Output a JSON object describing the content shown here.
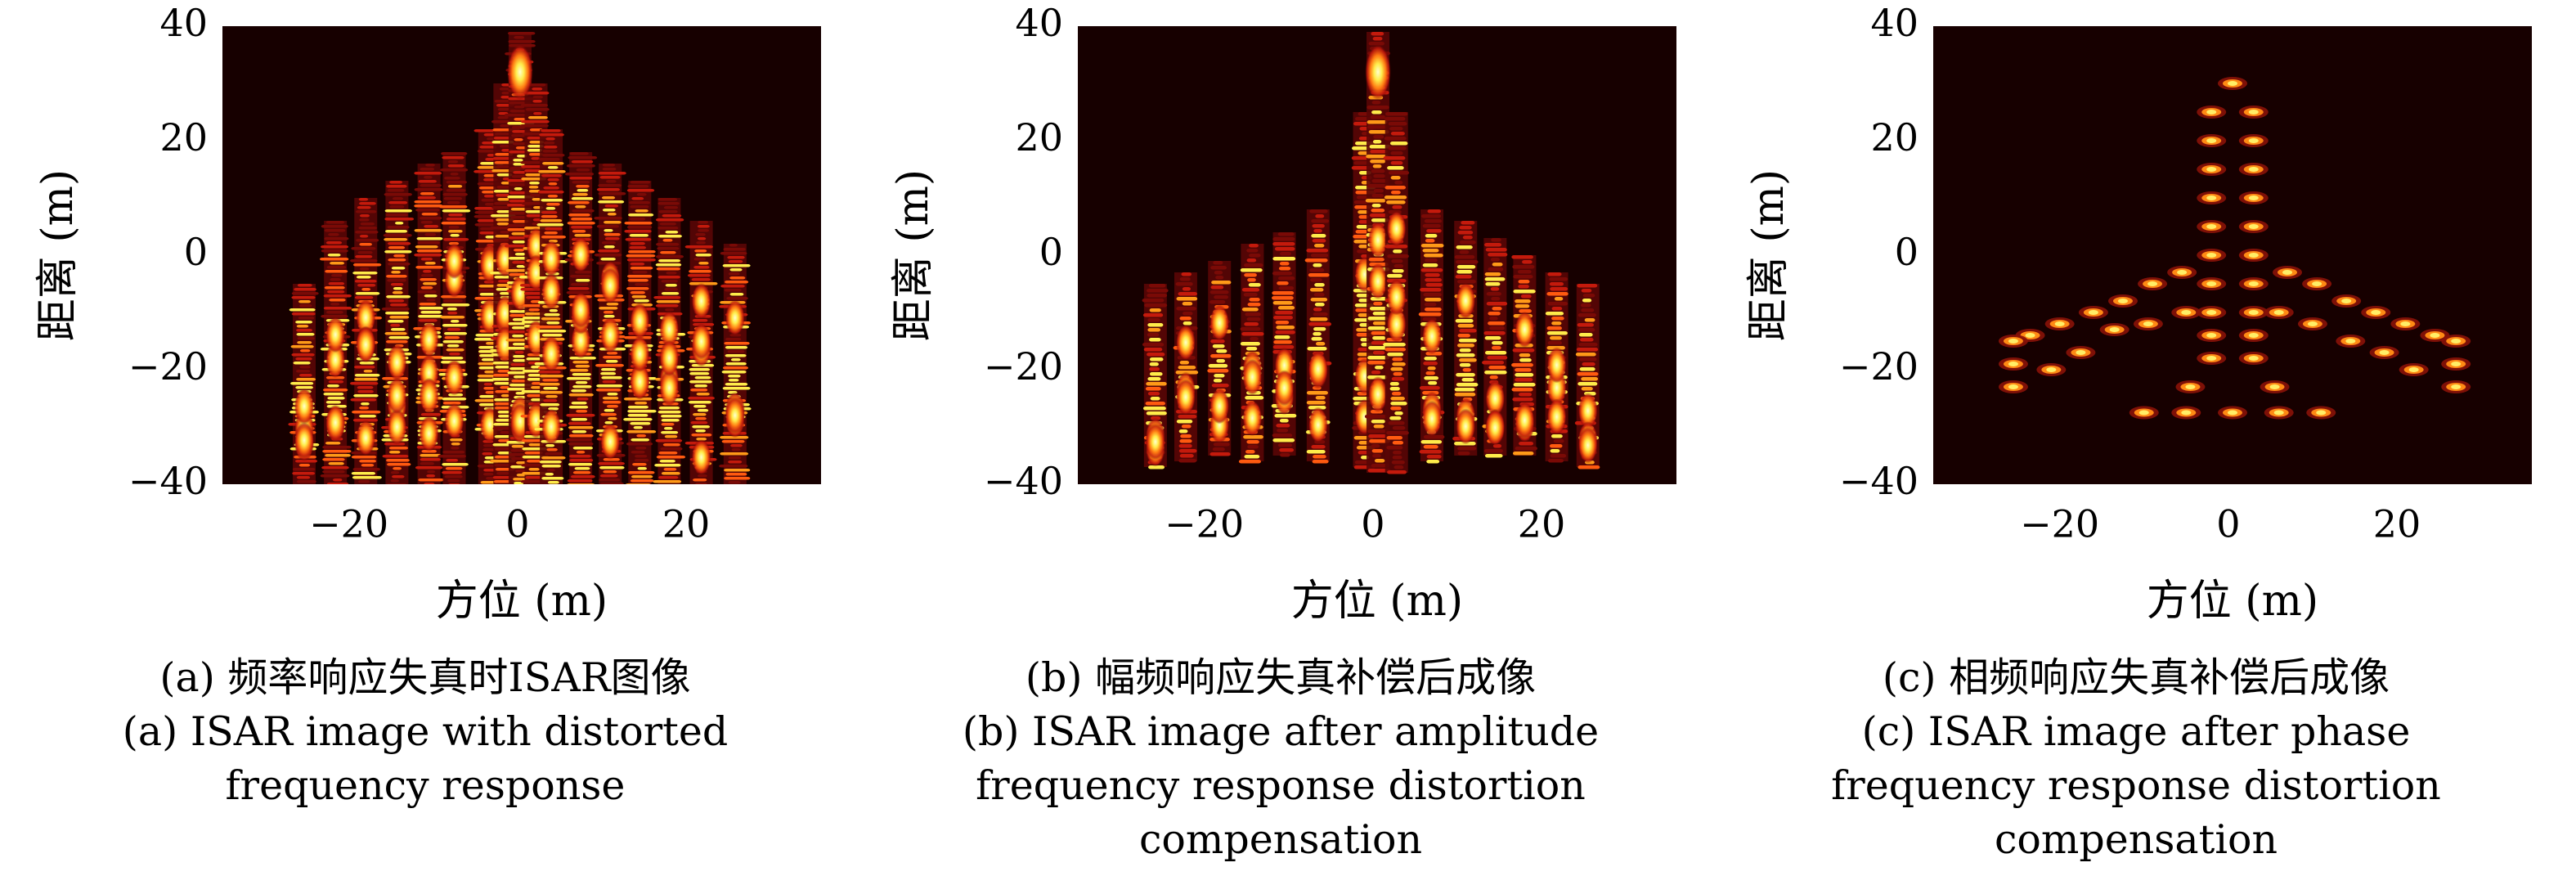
{
  "colors": {
    "background": "#170000",
    "dark_red": "#8a0a0a",
    "red": "#d21b0d",
    "orange": "#ff7a12",
    "yellow": "#ffec4a",
    "white_hot": "#ffffd0"
  },
  "chart_data": [
    {
      "type": "heatmap",
      "colormap": "hot",
      "xlabel": "方位 (m)",
      "ylabel": "距离 (m)",
      "xticks": [
        "−20",
        "0",
        "20"
      ],
      "yticks": [
        "40",
        "20",
        "0",
        "−20",
        "−40"
      ],
      "xlim": [
        -35,
        36
      ],
      "ylim": [
        -40,
        40
      ],
      "caption_cn": "(a) 频率响应失真时ISAR图像",
      "caption_en": [
        "(a) ISAR image with distorted",
        "frequency response"
      ],
      "appearance": "defocused",
      "scatterer_columns": [
        {
          "x": -25.3,
          "y_top": -5,
          "y_bottom": -40
        },
        {
          "x": -21.6,
          "y_top": 6,
          "y_bottom": -40
        },
        {
          "x": -18.0,
          "y_top": 10,
          "y_bottom": -40
        },
        {
          "x": -14.3,
          "y_top": 13,
          "y_bottom": -40
        },
        {
          "x": -10.5,
          "y_top": 16,
          "y_bottom": -40
        },
        {
          "x": -7.5,
          "y_top": 18,
          "y_bottom": -40
        },
        {
          "x": -3.3,
          "y_top": 22,
          "y_bottom": -40
        },
        {
          "x": -1.5,
          "y_top": 30,
          "y_bottom": -40
        },
        {
          "x": 0.3,
          "y_top": 39,
          "y_bottom": -40
        },
        {
          "x": 2.2,
          "y_top": 30,
          "y_bottom": -40
        },
        {
          "x": 4.0,
          "y_top": 22,
          "y_bottom": -40
        },
        {
          "x": 7.5,
          "y_top": 18,
          "y_bottom": -40
        },
        {
          "x": 11.0,
          "y_top": 16,
          "y_bottom": -40
        },
        {
          "x": 14.5,
          "y_top": 13,
          "y_bottom": -40
        },
        {
          "x": 18.0,
          "y_top": 10,
          "y_bottom": -40
        },
        {
          "x": 21.8,
          "y_top": 6,
          "y_bottom": -40
        },
        {
          "x": 25.8,
          "y_top": 2,
          "y_bottom": -40
        }
      ]
    },
    {
      "type": "heatmap",
      "colormap": "hot",
      "xlabel": "方位 (m)",
      "ylabel": "距离 (m)",
      "xticks": [
        "−20",
        "0",
        "20"
      ],
      "yticks": [
        "40",
        "20",
        "0",
        "−20",
        "−40"
      ],
      "xlim": [
        -35,
        36
      ],
      "ylim": [
        -40,
        40
      ],
      "caption_cn": "(b) 幅频响应失真补偿后成像",
      "caption_en": [
        "(b) ISAR image after amplitude",
        "frequency response distortion",
        "compensation"
      ],
      "appearance": "partially-focused",
      "scatterer_columns": [
        {
          "x": -25.8,
          "y_top": -5,
          "y_bottom": -37
        },
        {
          "x": -22.2,
          "y_top": -3,
          "y_bottom": -36
        },
        {
          "x": -18.2,
          "y_top": -1,
          "y_bottom": -35
        },
        {
          "x": -14.3,
          "y_top": 2,
          "y_bottom": -36
        },
        {
          "x": -10.5,
          "y_top": 4,
          "y_bottom": -35
        },
        {
          "x": -6.5,
          "y_top": 8,
          "y_bottom": -36
        },
        {
          "x": -1.0,
          "y_top": 25,
          "y_bottom": -37
        },
        {
          "x": 0.6,
          "y_top": 39,
          "y_bottom": -38
        },
        {
          "x": 2.8,
          "y_top": 25,
          "y_bottom": -38
        },
        {
          "x": 7.0,
          "y_top": 8,
          "y_bottom": -36
        },
        {
          "x": 11.0,
          "y_top": 6,
          "y_bottom": -35
        },
        {
          "x": 14.5,
          "y_top": 3,
          "y_bottom": -35
        },
        {
          "x": 18.0,
          "y_top": 0,
          "y_bottom": -35
        },
        {
          "x": 21.8,
          "y_top": -3,
          "y_bottom": -36
        },
        {
          "x": 25.5,
          "y_top": -5,
          "y_bottom": -37
        }
      ]
    },
    {
      "type": "heatmap",
      "colormap": "hot",
      "xlabel": "方位 (m)",
      "ylabel": "距离 (m)",
      "xticks": [
        "−20",
        "0",
        "20"
      ],
      "yticks": [
        "40",
        "20",
        "0",
        "−20",
        "−40"
      ],
      "xlim": [
        -35,
        36
      ],
      "ylim": [
        -40,
        40
      ],
      "caption_cn": "(c) 相频响应失真补偿后成像",
      "caption_en": [
        "(c) ISAR image after phase",
        "frequency response distortion",
        "compensation"
      ],
      "appearance": "focused",
      "scatterers": [
        {
          "x": 0.5,
          "y": 30
        },
        {
          "x": -2.0,
          "y": 25
        },
        {
          "x": 3.0,
          "y": 25
        },
        {
          "x": -2.0,
          "y": 20
        },
        {
          "x": 3.0,
          "y": 20
        },
        {
          "x": -2.0,
          "y": 15
        },
        {
          "x": 3.0,
          "y": 15
        },
        {
          "x": -2.0,
          "y": 10
        },
        {
          "x": 3.0,
          "y": 10
        },
        {
          "x": -2.0,
          "y": 5
        },
        {
          "x": 3.0,
          "y": 5
        },
        {
          "x": -2.0,
          "y": 0
        },
        {
          "x": 3.0,
          "y": 0
        },
        {
          "x": -2.0,
          "y": -5
        },
        {
          "x": 3.0,
          "y": -5
        },
        {
          "x": -2.0,
          "y": -10
        },
        {
          "x": 3.0,
          "y": -10
        },
        {
          "x": -2.0,
          "y": -14
        },
        {
          "x": 3.0,
          "y": -14
        },
        {
          "x": -2.0,
          "y": -18
        },
        {
          "x": 3.0,
          "y": -18
        },
        {
          "x": -5.5,
          "y": -3
        },
        {
          "x": 7.0,
          "y": -3
        },
        {
          "x": -9.0,
          "y": -5
        },
        {
          "x": 10.5,
          "y": -5
        },
        {
          "x": -12.5,
          "y": -8
        },
        {
          "x": 14.0,
          "y": -8
        },
        {
          "x": -16.0,
          "y": -10
        },
        {
          "x": 17.5,
          "y": -10
        },
        {
          "x": -20.0,
          "y": -12
        },
        {
          "x": 21.0,
          "y": -12
        },
        {
          "x": -23.5,
          "y": -14
        },
        {
          "x": 24.5,
          "y": -14
        },
        {
          "x": -25.5,
          "y": -15
        },
        {
          "x": 27.0,
          "y": -15
        },
        {
          "x": -5.0,
          "y": -10
        },
        {
          "x": 6.0,
          "y": -10
        },
        {
          "x": -9.5,
          "y": -12
        },
        {
          "x": 10.0,
          "y": -12
        },
        {
          "x": -13.5,
          "y": -13
        },
        {
          "x": 14.5,
          "y": -15
        },
        {
          "x": -17.5,
          "y": -17
        },
        {
          "x": 18.5,
          "y": -17
        },
        {
          "x": -21.0,
          "y": -20
        },
        {
          "x": 22.0,
          "y": -20
        },
        {
          "x": -25.5,
          "y": -19
        },
        {
          "x": 27.0,
          "y": -19
        },
        {
          "x": -25.5,
          "y": -23
        },
        {
          "x": 27.0,
          "y": -23
        },
        {
          "x": -4.5,
          "y": -23
        },
        {
          "x": 5.5,
          "y": -23
        },
        {
          "x": -10.0,
          "y": -27.5
        },
        {
          "x": -5.0,
          "y": -27.5
        },
        {
          "x": 0.5,
          "y": -27.5
        },
        {
          "x": 6.0,
          "y": -27.5
        },
        {
          "x": 11.0,
          "y": -27.5
        }
      ]
    }
  ]
}
